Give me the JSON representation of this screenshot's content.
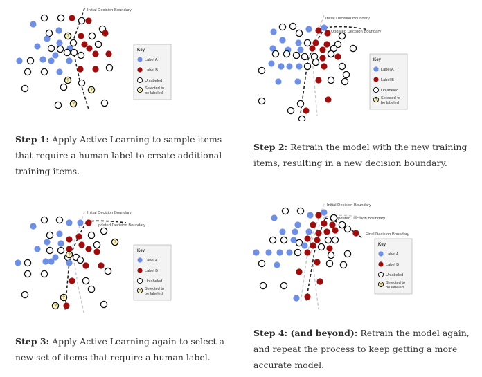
{
  "colors": {
    "label_a": "#6f8fe3",
    "label_b": "#9c0d0d",
    "unlabeled_stroke": "#111111",
    "selected_fill": "#fff7c0",
    "key_bg": "#f3f3f3",
    "caption_text": "#333333"
  },
  "key": {
    "title": "Key",
    "label_a": "Label A",
    "label_b": "Label B",
    "unlabeled": "Unlabeled",
    "selected_line1": "Selected to",
    "selected_line2": "be labeled",
    "selected_glyph": "?"
  },
  "panels": [
    {
      "boundaries": [
        "Initial Decision Boundary"
      ],
      "caption": {
        "step": "Step 1:",
        "text": "Apply Active Learning to sample items that require a human label to create additional training items."
      }
    },
    {
      "boundaries": [
        "Initial Decision Boundary",
        "Updated Decision Boundary"
      ],
      "caption": {
        "step": "Step 2:",
        "text": "Retrain the model with the new training items, resulting in a new decision boundary."
      }
    },
    {
      "boundaries": [
        "Initial Decision Boundary",
        "Updated Decision Boundary"
      ],
      "caption": {
        "step": "Step 3:",
        "text": "Apply Active Learning again to select a new set of items that require a human label."
      }
    },
    {
      "boundaries": [
        "Initial Decision Boundary",
        "Updated Decision Boundary",
        "Final Decision Boundary"
      ],
      "caption": {
        "step": "Step 4: (and beyond):",
        "text": "Retrain the model again, and repeat the process to keep getting a more accurate model."
      }
    }
  ]
}
